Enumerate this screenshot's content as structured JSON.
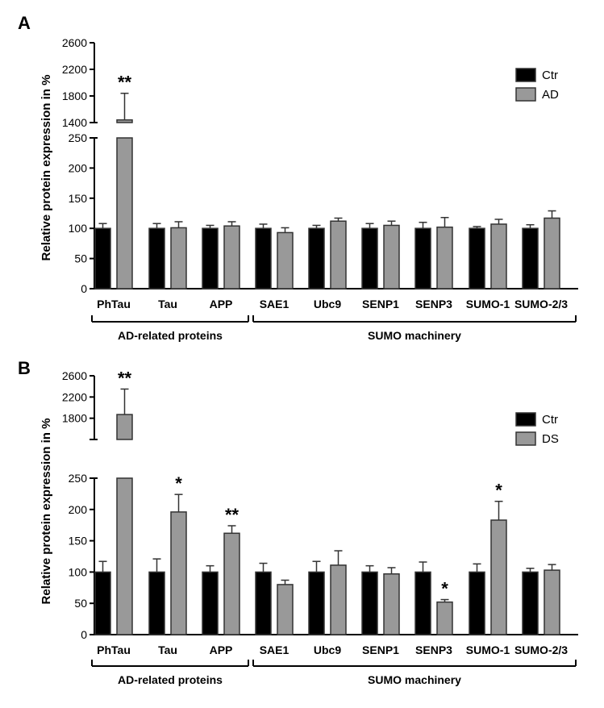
{
  "chart_data": [
    {
      "panel_label": "A",
      "type": "bar",
      "ylabel": "Relative protein expression in %",
      "categories": [
        "PhTau",
        "Tau",
        "APP",
        "SAE1",
        "Ubc9",
        "SENP1",
        "SENP3",
        "SUMO-1",
        "SUMO-2/3"
      ],
      "series": [
        {
          "name": "Ctr",
          "color": "#000000",
          "values": [
            100,
            100,
            100,
            100,
            100,
            100,
            100,
            100,
            100
          ],
          "errors": [
            8,
            8,
            5,
            7,
            5,
            8,
            10,
            3,
            6
          ]
        },
        {
          "name": "AD",
          "color": "#999999",
          "values": [
            1440,
            101,
            104,
            93,
            112,
            105,
            102,
            107,
            117
          ],
          "errors": [
            400,
            10,
            7,
            8,
            5,
            7,
            16,
            8,
            12
          ]
        }
      ],
      "significance": [
        "**",
        "",
        "",
        "",
        "",
        "",
        "",
        "",
        ""
      ],
      "yaxis_lower": {
        "ticks": [
          "0",
          "50",
          "100",
          "150",
          "200",
          "250"
        ],
        "range": [
          0,
          250
        ]
      },
      "yaxis_upper": {
        "ticks": [
          "1400",
          "1800",
          "2200",
          "2600"
        ],
        "range": [
          1400,
          2600
        ]
      },
      "groups": [
        {
          "label": "AD-related proteins",
          "categories": [
            "PhTau",
            "Tau",
            "APP"
          ]
        },
        {
          "label": "SUMO machinery",
          "categories": [
            "SAE1",
            "Ubc9",
            "SENP1",
            "SENP3",
            "SUMO-1",
            "SUMO-2/3"
          ]
        }
      ],
      "legend_position": "top-right"
    },
    {
      "panel_label": "B",
      "type": "bar",
      "ylabel": "Relative protein expression in %",
      "categories": [
        "PhTau",
        "Tau",
        "APP",
        "SAE1",
        "Ubc9",
        "SENP1",
        "SENP3",
        "SUMO-1",
        "SUMO-2/3"
      ],
      "series": [
        {
          "name": "Ctr",
          "color": "#000000",
          "values": [
            100,
            100,
            100,
            100,
            100,
            100,
            100,
            100,
            100
          ],
          "errors": [
            17,
            21,
            10,
            14,
            17,
            10,
            16,
            13,
            6
          ]
        },
        {
          "name": "DS",
          "color": "#999999",
          "values": [
            1870,
            196,
            162,
            80,
            111,
            97,
            52,
            183,
            103
          ],
          "errors": [
            480,
            28,
            12,
            7,
            23,
            10,
            4,
            30,
            9
          ]
        }
      ],
      "significance": [
        "**",
        "*",
        "**",
        "",
        "",
        "",
        "*",
        "*",
        ""
      ],
      "yaxis_lower": {
        "ticks": [
          "0",
          "50",
          "100",
          "150",
          "200",
          "250"
        ],
        "range": [
          0,
          250
        ]
      },
      "yaxis_upper": {
        "ticks": [
          "1800",
          "2200",
          "2600"
        ],
        "range": [
          1400,
          2600
        ]
      },
      "groups": [
        {
          "label": "AD-related proteins",
          "categories": [
            "PhTau",
            "Tau",
            "APP"
          ]
        },
        {
          "label": "SUMO machinery",
          "categories": [
            "SAE1",
            "Ubc9",
            "SENP1",
            "SENP3",
            "SUMO-1",
            "SUMO-2/3"
          ]
        }
      ],
      "legend_position": "top-right"
    }
  ]
}
